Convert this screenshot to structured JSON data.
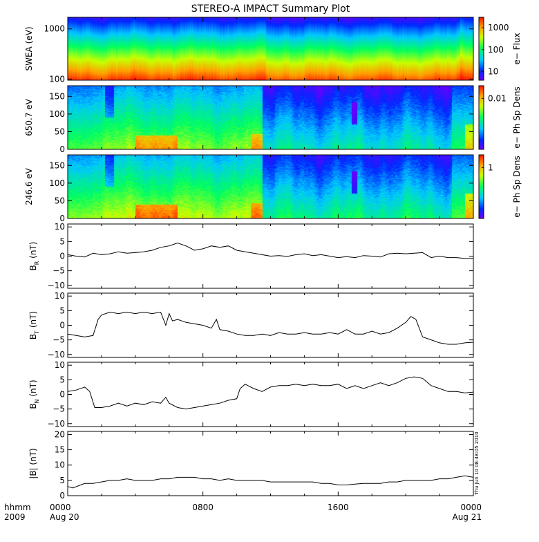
{
  "title": "STEREO-A IMPACT Summary Plot",
  "stamp": "Thu Jun 10 08:48:05 2010",
  "time_axis": {
    "corner_top": "hhmm",
    "corner_bottom": "2009",
    "ticks": [
      {
        "value": "0000",
        "sub": "Aug 20"
      },
      {
        "value": "0800",
        "sub": ""
      },
      {
        "value": "1600",
        "sub": ""
      },
      {
        "value": "0000",
        "sub": "Aug 21"
      }
    ]
  },
  "chart_data": [
    {
      "type": "heatmap",
      "ylabel": "SWEA (eV)",
      "yscale": "log",
      "ylim": [
        95,
        1700
      ],
      "yticks": [
        "1000",
        "100"
      ],
      "colorbar": {
        "label": "e− Flux",
        "scale": "log",
        "range": [
          4,
          3000
        ],
        "ticks": [
          "1000",
          "100",
          "10"
        ]
      },
      "xlim_hours": [
        0,
        24
      ]
    },
    {
      "type": "heatmap",
      "ylabel": "650.7 eV",
      "ylim": [
        0,
        180
      ],
      "yticks": [
        "150",
        "100",
        "50",
        "0"
      ],
      "colorbar": {
        "label": "e− Ph Sp Dens",
        "ticks": [
          "0.01"
        ]
      },
      "xlim_hours": [
        0,
        24
      ]
    },
    {
      "type": "heatmap",
      "ylabel": "246.6 eV",
      "ylim": [
        0,
        180
      ],
      "yticks": [
        "150",
        "100",
        "50",
        "0"
      ],
      "colorbar": {
        "label": "e− Ph Sp Dens",
        "ticks": [
          "1"
        ]
      },
      "xlim_hours": [
        0,
        24
      ]
    },
    {
      "type": "line",
      "ylabel_main": "B",
      "ylabel_sub": "R",
      "ylabel_unit": " (nT)",
      "ylim": [
        -11,
        11
      ],
      "yticks": [
        "10",
        "5",
        "0",
        "−5",
        "−10"
      ],
      "series": [
        {
          "x": [
            0,
            0.5,
            1,
            1.5,
            2,
            2.5,
            3,
            3.5,
            4,
            4.5,
            5,
            5.5,
            6,
            6.5,
            7,
            7.5,
            8,
            8.5,
            9,
            9.5,
            10,
            10.5,
            11,
            11.5,
            12,
            12.5,
            13,
            13.5,
            14,
            14.5,
            15,
            15.5,
            16,
            16.5,
            17,
            17.5,
            18,
            18.5,
            19,
            19.5,
            20,
            20.5,
            21,
            21.5,
            22,
            22.5,
            23,
            23.5,
            24
          ],
          "y": [
            0.5,
            0,
            -0.3,
            1,
            0.5,
            0.8,
            1.5,
            1,
            1.2,
            1.5,
            2,
            3,
            3.5,
            4.5,
            3.5,
            2,
            2.5,
            3.5,
            3,
            3.5,
            2,
            1.5,
            1,
            0.5,
            0,
            0.2,
            -0.1,
            0.5,
            0.8,
            0.2,
            0.5,
            0,
            -0.5,
            -0.2,
            -0.5,
            0.2,
            0,
            -0.3,
            0.8,
            1,
            0.8,
            1,
            1.2,
            -0.5,
            0,
            -0.5,
            -0.5,
            -0.8,
            -0.8
          ]
        }
      ]
    },
    {
      "type": "line",
      "ylabel_main": "B",
      "ylabel_sub": "T",
      "ylabel_unit": " (nT)",
      "ylim": [
        -11,
        11
      ],
      "yticks": [
        "10",
        "5",
        "0",
        "−5",
        "−10"
      ],
      "series": [
        {
          "x": [
            0,
            0.5,
            1,
            1.5,
            1.8,
            2,
            2.5,
            3,
            3.5,
            4,
            4.5,
            5,
            5.5,
            5.8,
            6,
            6.2,
            6.5,
            7,
            7.5,
            8,
            8.5,
            8.8,
            9,
            9.5,
            10,
            10.5,
            11,
            11.5,
            12,
            12.5,
            13,
            13.5,
            14,
            14.5,
            15,
            15.5,
            16,
            16.5,
            17,
            17.5,
            18,
            18.5,
            19,
            19.5,
            20,
            20.3,
            20.6,
            21,
            21.5,
            22,
            22.5,
            23,
            23.5,
            24
          ],
          "y": [
            -3,
            -3.5,
            -4,
            -3.5,
            2,
            3.5,
            4.5,
            4,
            4.5,
            4,
            4.5,
            4,
            4.5,
            0,
            4,
            1.5,
            2,
            1,
            0.5,
            0,
            -1,
            2,
            -1.5,
            -2,
            -3,
            -3.5,
            -3.5,
            -3,
            -3.5,
            -2.5,
            -3,
            -3,
            -2.5,
            -3,
            -3,
            -2.5,
            -3,
            -1.5,
            -3,
            -3,
            -2,
            -3,
            -2.5,
            -1,
            1,
            3,
            2,
            -4,
            -5,
            -6,
            -6.5,
            -6.5,
            -6,
            -5.8
          ]
        }
      ]
    },
    {
      "type": "line",
      "ylabel_main": "B",
      "ylabel_sub": "N",
      "ylabel_unit": " (nT)",
      "ylim": [
        -11,
        11
      ],
      "yticks": [
        "10",
        "5",
        "0",
        "−5",
        "−10"
      ],
      "series": [
        {
          "x": [
            0,
            0.5,
            1,
            1.3,
            1.6,
            2,
            2.5,
            3,
            3.5,
            4,
            4.5,
            5,
            5.5,
            5.8,
            6,
            6.5,
            7,
            7.5,
            8,
            8.5,
            9,
            9.5,
            10,
            10.2,
            10.5,
            11,
            11.5,
            12,
            12.5,
            13,
            13.5,
            14,
            14.5,
            15,
            15.5,
            16,
            16.5,
            17,
            17.5,
            18,
            18.5,
            19,
            19.5,
            20,
            20.5,
            21,
            21.5,
            22,
            22.5,
            23,
            23.5,
            24
          ],
          "y": [
            1,
            1.5,
            2.5,
            1,
            -4.5,
            -4.5,
            -4,
            -3,
            -4,
            -3,
            -3.5,
            -2.5,
            -3,
            -1,
            -3,
            -4.5,
            -5,
            -4.5,
            -4,
            -3.5,
            -3,
            -2,
            -1.5,
            2,
            3.5,
            2,
            1,
            2.5,
            3,
            3,
            3.5,
            3,
            3.5,
            3,
            3,
            3.5,
            2,
            3,
            2,
            3,
            4,
            3,
            4,
            5.5,
            6,
            5.5,
            3,
            2,
            1,
            1,
            0.5,
            0.8
          ]
        }
      ]
    },
    {
      "type": "line",
      "ylabel_main": "|B|",
      "ylabel_sub": "",
      "ylabel_unit": " (nT)",
      "ylim": [
        0,
        21
      ],
      "yticks": [
        "20",
        "15",
        "10",
        "5",
        "0"
      ],
      "series": [
        {
          "x": [
            0,
            0.3,
            1,
            1.5,
            2,
            2.5,
            3,
            3.5,
            4,
            4.5,
            5,
            5.5,
            6,
            6.5,
            7,
            7.5,
            8,
            8.5,
            9,
            9.5,
            10,
            10.5,
            11,
            11.5,
            12,
            12.5,
            13,
            13.5,
            14,
            14.5,
            15,
            15.5,
            16,
            16.5,
            17,
            17.5,
            18,
            18.5,
            19,
            19.5,
            20,
            20.5,
            21,
            21.5,
            22,
            22.5,
            23,
            23.5,
            24
          ],
          "y": [
            3,
            2.5,
            4,
            4,
            4.5,
            5,
            5,
            5.5,
            5,
            5,
            5,
            5.5,
            5.5,
            6,
            6,
            6,
            5.5,
            5.5,
            5,
            5.5,
            5,
            5,
            5,
            5,
            4.5,
            4.5,
            4.5,
            4.5,
            4.5,
            4.5,
            4,
            4,
            3.5,
            3.5,
            3.8,
            4,
            4,
            4,
            4.5,
            4.5,
            5,
            5,
            5,
            5,
            5.5,
            5.5,
            6,
            6.5,
            6
          ]
        }
      ]
    }
  ]
}
